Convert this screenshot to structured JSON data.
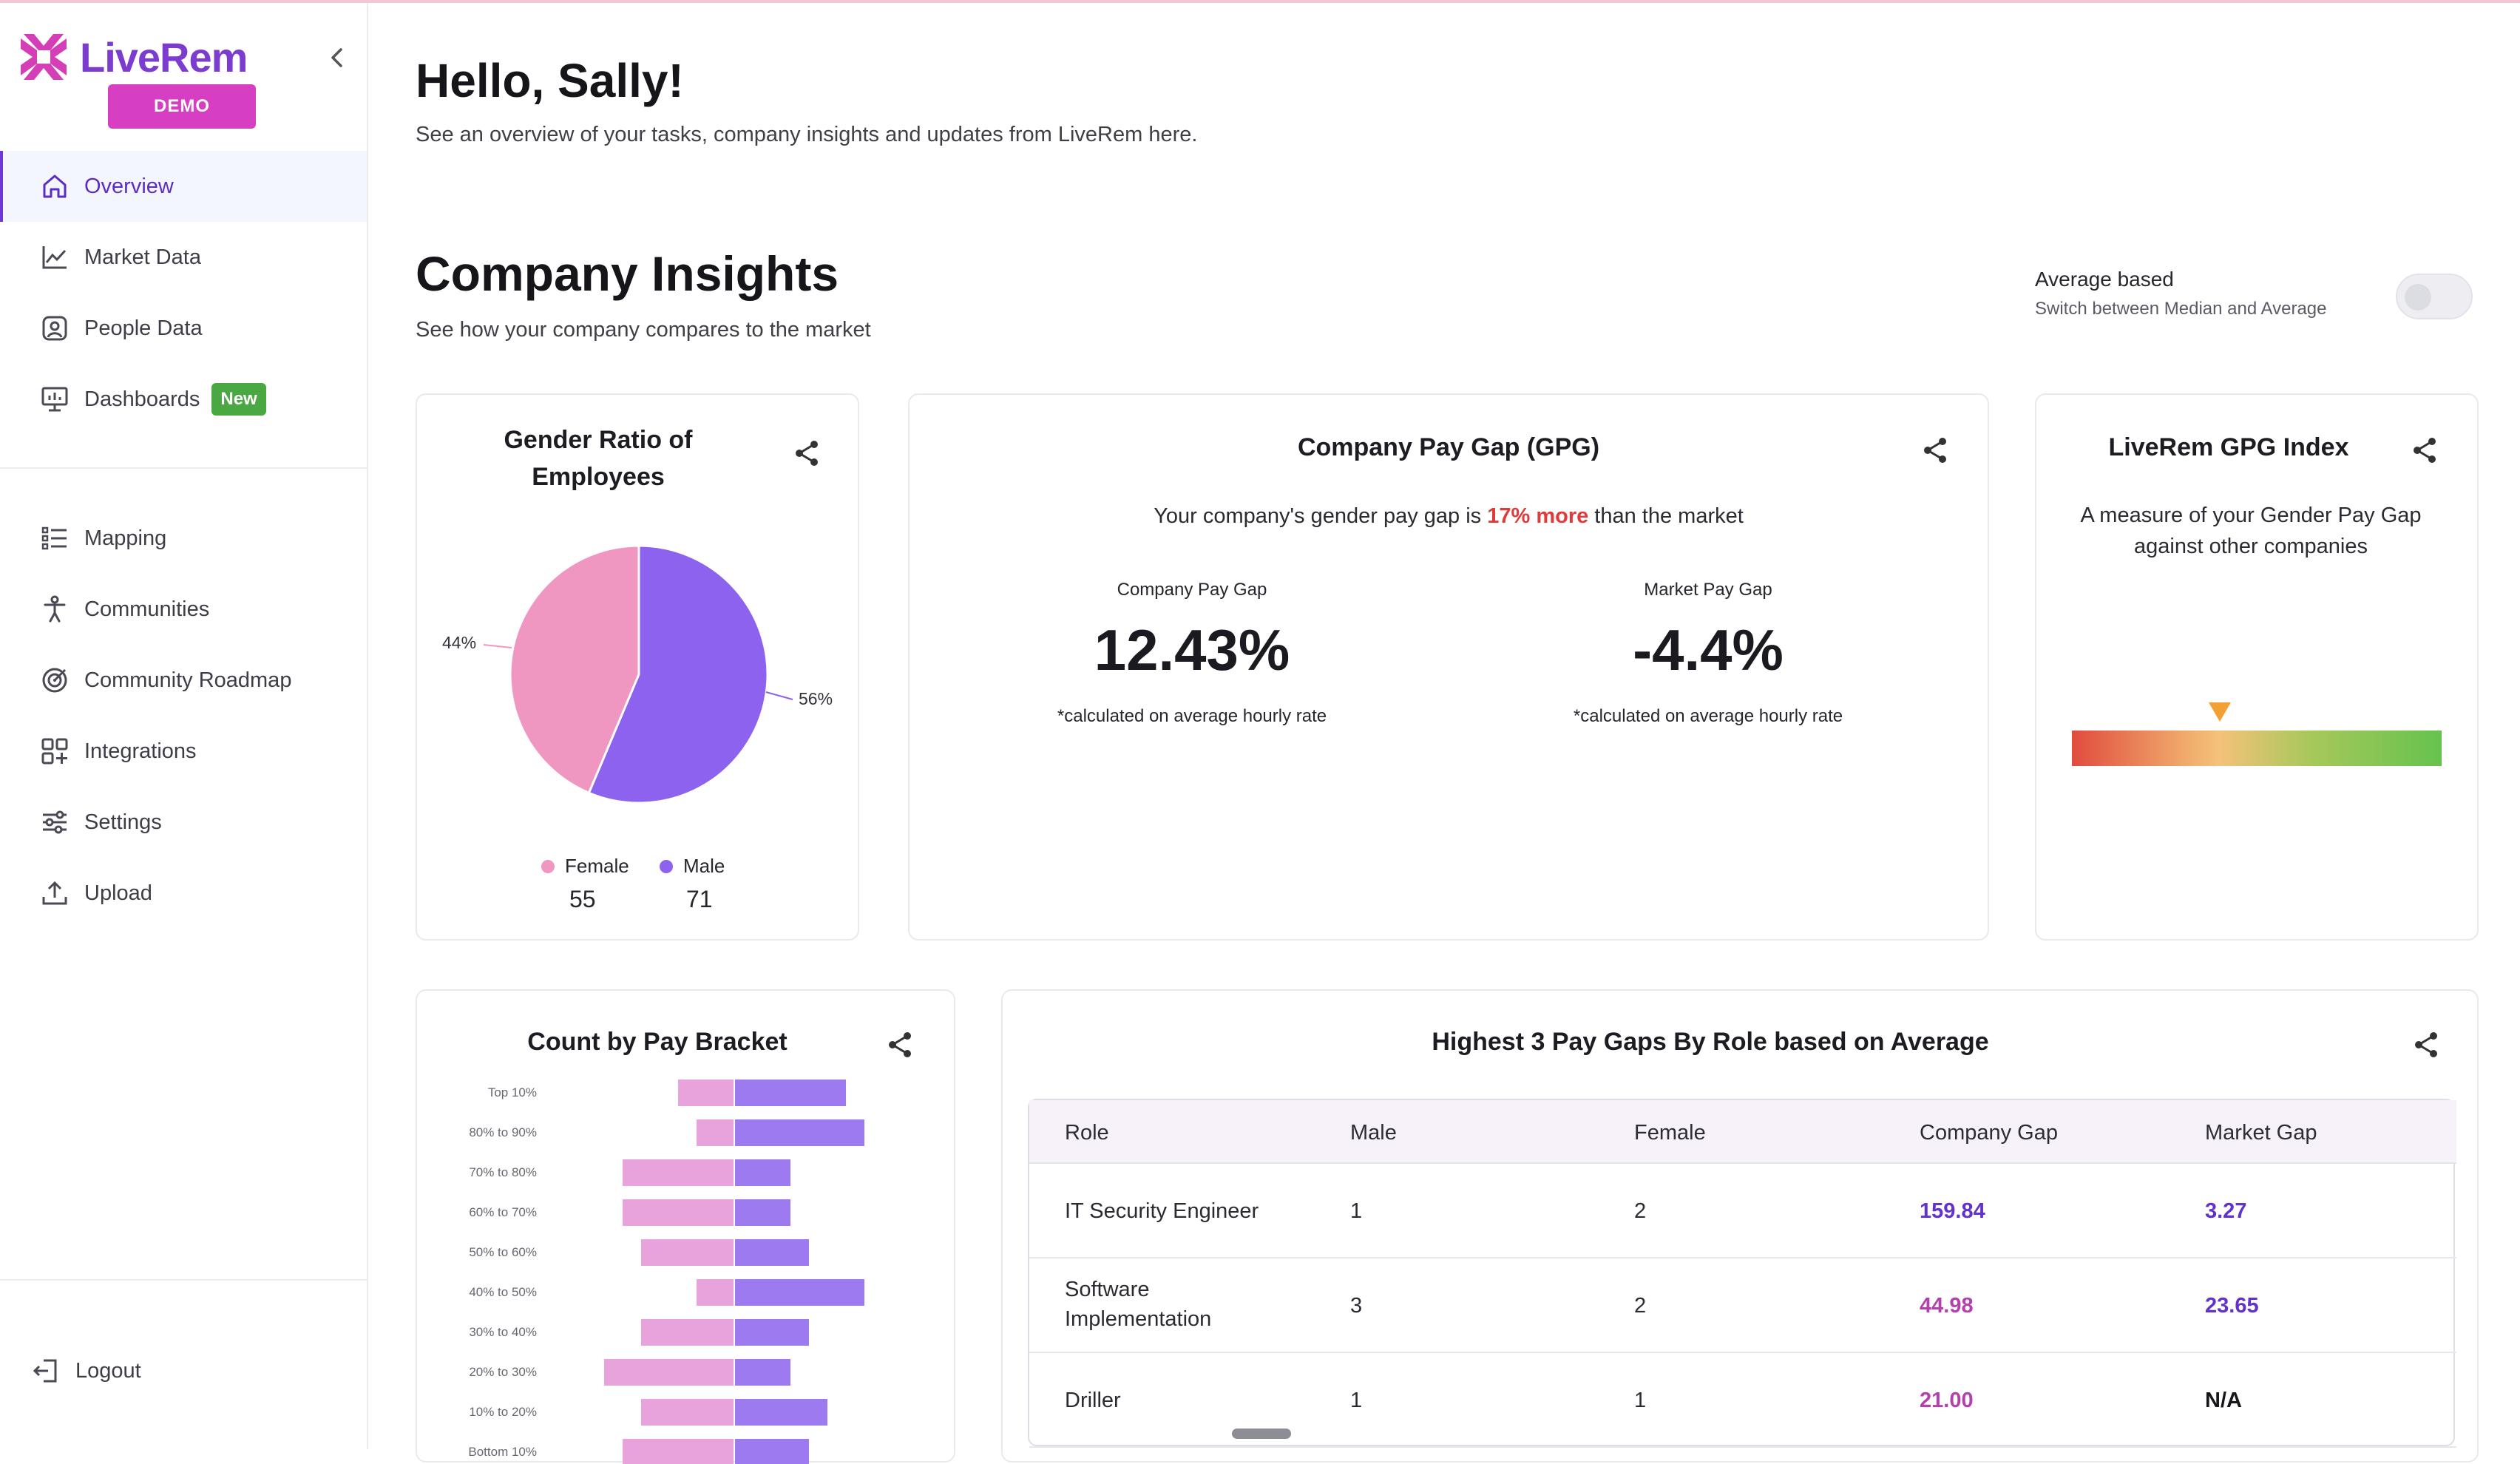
{
  "brand": {
    "name": "LiveRem",
    "badge": "DEMO"
  },
  "sidebar": {
    "items": [
      {
        "label": "Overview",
        "icon": "home-icon",
        "active": true
      },
      {
        "label": "Market Data",
        "icon": "trend-chart-icon"
      },
      {
        "label": "People Data",
        "icon": "person-badge-icon"
      },
      {
        "label": "Dashboards",
        "icon": "monitor-chart-icon",
        "badge": "New"
      },
      {
        "label": "Mapping",
        "icon": "list-icon"
      },
      {
        "label": "Communities",
        "icon": "person-icon"
      },
      {
        "label": "Community Roadmap",
        "icon": "target-icon"
      },
      {
        "label": "Integrations",
        "icon": "grid-plus-icon"
      },
      {
        "label": "Settings",
        "icon": "sliders-icon"
      },
      {
        "label": "Upload",
        "icon": "upload-icon"
      }
    ],
    "logout": "Logout"
  },
  "header": {
    "greeting": "Hello, Sally!",
    "subtitle": "See an overview of your tasks, company insights and updates from LiveRem here."
  },
  "insights": {
    "title": "Company Insights",
    "subtitle": "See how your company compares to the market",
    "toggle_label": "Average based",
    "toggle_sub": "Switch between Median and Average",
    "toggle_on": false
  },
  "gender_ratio": {
    "title_line1": "Gender Ratio of",
    "title_line2": "Employees",
    "female_pct": "44%",
    "male_pct": "56%",
    "female_label": "Female",
    "male_label": "Male",
    "female_count": "55",
    "male_count": "71",
    "colors": {
      "female": "#ef97c0",
      "male": "#8c62ee"
    }
  },
  "gpg": {
    "title": "Company Pay Gap (GPG)",
    "line_before": "Your company's gender pay gap is ",
    "line_highlight": "17% more",
    "line_after": " than the market",
    "company_label": "Company Pay Gap",
    "company_value": "12.43%",
    "market_label": "Market Pay Gap",
    "market_value": "-4.4%",
    "note": "*calculated on average hourly rate"
  },
  "gpg_index": {
    "title": "LiveRem GPG Index",
    "description": "A measure of your Gender Pay Gap against other companies",
    "marker_position": 0.4
  },
  "pay_bracket": {
    "title": "Count by Pay Bracket",
    "rows": [
      {
        "label": "Top 10%",
        "female": 3,
        "male": 6
      },
      {
        "label": "80% to 90%",
        "female": 2,
        "male": 7
      },
      {
        "label": "70% to 80%",
        "female": 6,
        "male": 3
      },
      {
        "label": "60% to 70%",
        "female": 6,
        "male": 3
      },
      {
        "label": "50% to 60%",
        "female": 5,
        "male": 4
      },
      {
        "label": "40% to 50%",
        "female": 2,
        "male": 7
      },
      {
        "label": "30% to 40%",
        "female": 5,
        "male": 4
      },
      {
        "label": "20% to 30%",
        "female": 7,
        "male": 3
      },
      {
        "label": "10% to 20%",
        "female": 5,
        "male": 5
      },
      {
        "label": "Bottom 10%",
        "female": 6,
        "male": 4
      }
    ],
    "colors": {
      "female": "#e8a3dc",
      "male": "#9d7af0"
    }
  },
  "pay_gaps_table": {
    "title": "Highest 3 Pay Gaps By Role based on Average",
    "headers": [
      "Role",
      "Male",
      "Female",
      "Company Gap",
      "Market Gap"
    ],
    "rows": [
      {
        "role": "IT Security Engineer",
        "role2": "",
        "male": "1",
        "female": "2",
        "company_gap": "159.84",
        "market_gap": "3.27"
      },
      {
        "role": "Software",
        "role2": "Implementation",
        "male": "3",
        "female": "2",
        "company_gap": "44.98",
        "market_gap": "23.65"
      },
      {
        "role": "Driller",
        "role2": "",
        "male": "1",
        "female": "1",
        "company_gap": "21.00",
        "market_gap": "N/A"
      }
    ]
  }
}
